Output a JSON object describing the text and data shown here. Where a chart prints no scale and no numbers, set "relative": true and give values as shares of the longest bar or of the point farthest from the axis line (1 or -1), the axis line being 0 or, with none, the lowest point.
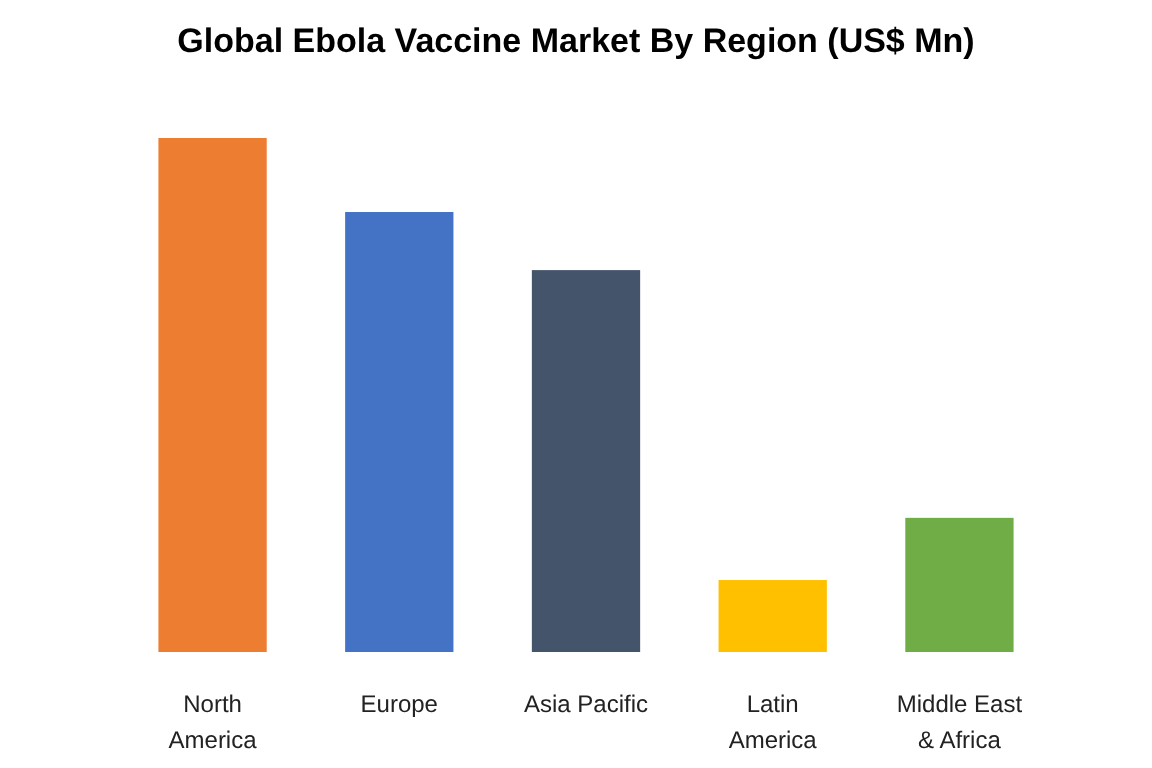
{
  "chart_data": {
    "type": "bar",
    "title": "Global Ebola Vaccine Market By Region (US$ Mn)",
    "relative": true,
    "categories": [
      "North America",
      "Europe",
      "Asia Pacific",
      "Latin America",
      "Middle East & Africa"
    ],
    "values": [
      1,
      0.856,
      0.743,
      0.14,
      0.261
    ],
    "colors": [
      "#ed7d31",
      "#4472c4",
      "#44546a",
      "#ffc000",
      "#70ad47"
    ]
  }
}
